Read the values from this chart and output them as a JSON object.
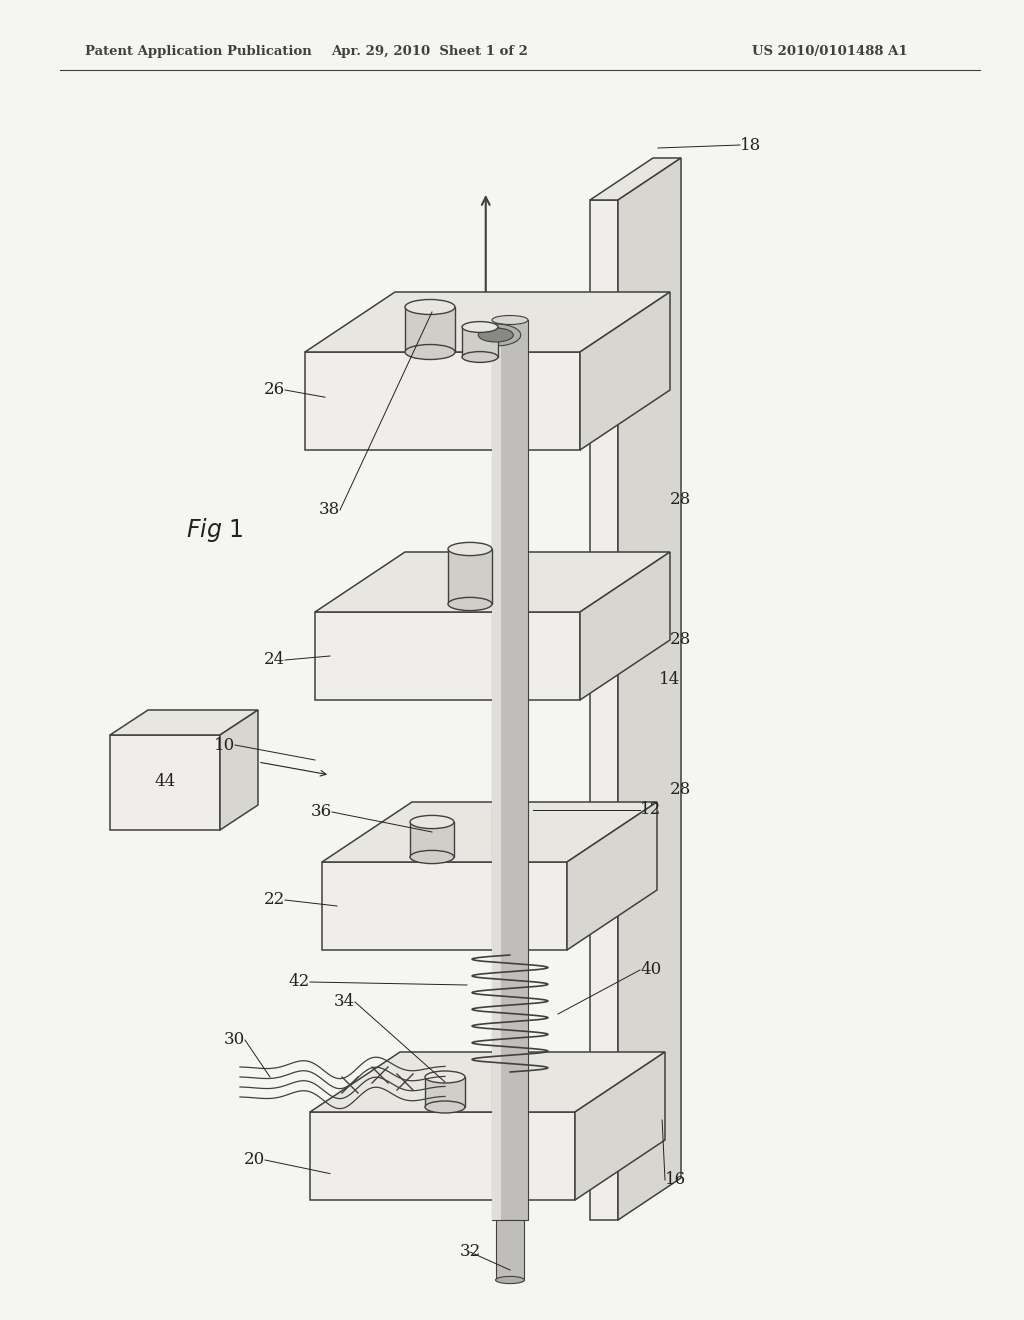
{
  "header_left": "Patent Application Publication",
  "header_center": "Apr. 29, 2010  Sheet 1 of 2",
  "header_right": "US 2010/0101488 A1",
  "bg_color": "#f5f5f2",
  "line_color": "#404040",
  "label_color": "#222222",
  "header_font_size": 9.5,
  "label_font_size": 9
}
